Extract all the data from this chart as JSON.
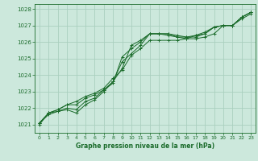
{
  "bg_color": "#cce8dc",
  "grid_color": "#aacfbf",
  "line_color": "#1a6b2a",
  "text_color": "#1a6b2a",
  "xlabel": "Graphe pression niveau de la mer (hPa)",
  "ylim": [
    1020.5,
    1028.3
  ],
  "xlim": [
    -0.5,
    23.5
  ],
  "yticks": [
    1021,
    1022,
    1023,
    1024,
    1025,
    1026,
    1027,
    1028
  ],
  "xticks": [
    0,
    1,
    2,
    3,
    4,
    5,
    6,
    7,
    8,
    9,
    10,
    11,
    12,
    13,
    14,
    15,
    16,
    17,
    18,
    19,
    20,
    21,
    22,
    23
  ],
  "series": [
    [
      1021.0,
      1021.7,
      1021.8,
      1021.9,
      1021.7,
      1022.2,
      1022.5,
      1023.0,
      1023.6,
      1024.4,
      1025.8,
      1026.1,
      1026.5,
      1026.5,
      1026.4,
      1026.3,
      1026.2,
      1026.2,
      1026.3,
      1026.5,
      1027.0,
      1027.0,
      1027.4,
      1027.7
    ],
    [
      1021.1,
      1021.7,
      1021.9,
      1022.2,
      1022.2,
      1022.6,
      1022.8,
      1023.1,
      1023.6,
      1024.8,
      1025.3,
      1025.8,
      1026.5,
      1026.5,
      1026.5,
      1026.4,
      1026.3,
      1026.4,
      1026.5,
      1026.9,
      1027.0,
      1027.0,
      1027.5,
      1027.8
    ],
    [
      1021.1,
      1021.6,
      1021.8,
      1022.0,
      1021.9,
      1022.4,
      1022.6,
      1023.1,
      1023.5,
      1025.1,
      1025.6,
      1026.0,
      1026.5,
      1026.5,
      1026.5,
      1026.3,
      1026.3,
      1026.3,
      1026.5,
      1026.9,
      1027.0,
      1027.0,
      1027.5,
      1027.8
    ],
    [
      1021.1,
      1021.7,
      1021.9,
      1022.2,
      1022.4,
      1022.7,
      1022.9,
      1023.2,
      1023.8,
      1024.3,
      1025.2,
      1025.6,
      1026.1,
      1026.1,
      1026.1,
      1026.1,
      1026.2,
      1026.4,
      1026.6,
      1026.9,
      1027.0,
      1027.0,
      1027.5,
      1027.8
    ]
  ]
}
